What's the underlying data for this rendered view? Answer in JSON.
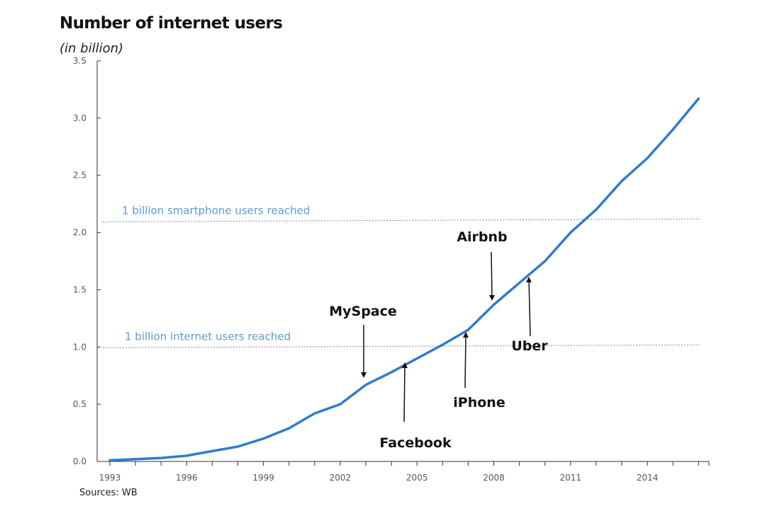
{
  "chart_data": {
    "type": "line",
    "title": "Number of internet users",
    "subtitle": "(in billion)",
    "source": "Sources: WB",
    "xlabel": "",
    "ylabel": "",
    "xlim": [
      1993,
      2016.5
    ],
    "ylim": [
      0,
      3.5
    ],
    "x_ticks": [
      1993,
      1996,
      1999,
      2002,
      2005,
      2008,
      2011,
      2014
    ],
    "y_ticks": [
      "0.0",
      "0.5",
      "1.0",
      "1.5",
      "2.0",
      "2.5",
      "3.0",
      "3.5"
    ],
    "grid": false,
    "line_color": "#2f7ccc",
    "series": [
      {
        "x": [
          1993,
          1994,
          1995,
          1996,
          1997,
          1998,
          1999,
          2000,
          2001,
          2002,
          2003,
          2004,
          2005,
          2006,
          2007,
          2008,
          2009,
          2010,
          2011,
          2012,
          2013,
          2014,
          2015,
          2016
        ],
        "values": [
          0.01,
          0.02,
          0.03,
          0.05,
          0.09,
          0.13,
          0.2,
          0.29,
          0.42,
          0.5,
          0.67,
          0.78,
          0.9,
          1.02,
          1.15,
          1.37,
          1.56,
          1.75,
          2.0,
          2.2,
          2.45,
          2.65,
          2.9,
          3.17
        ]
      }
    ],
    "reference_lines": [
      {
        "label": "1 billion smartphone users reached",
        "y": 2.1,
        "color": "#5b9bd5"
      },
      {
        "label": "1 billion internet users reached",
        "y": 1.0,
        "color": "#5b9bd5"
      }
    ],
    "annotations": [
      {
        "label": "MySpace",
        "x": 2003,
        "y": 0.7,
        "direction": "down"
      },
      {
        "label": "Facebook",
        "x": 2004.6,
        "y": 0.82,
        "direction": "up"
      },
      {
        "label": "iPhone",
        "x": 2007,
        "y": 1.13,
        "direction": "up"
      },
      {
        "label": "Airbnb",
        "x": 2008,
        "y": 1.43,
        "direction": "down"
      },
      {
        "label": "Uber",
        "x": 2009.5,
        "y": 1.6,
        "direction": "up"
      }
    ]
  }
}
